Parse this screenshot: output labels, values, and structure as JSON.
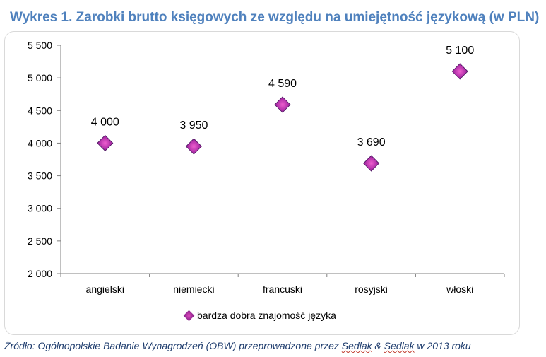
{
  "title": "Wykres 1. Zarobki brutto księgowych ze względu na umiejętność językową (w PLN)",
  "source": {
    "prefix": "Źródło: Ogólnopolskie Badanie Wynagrodzeń (OBW) przeprowadzone przez ",
    "name1": "Sedlak",
    "amp": " & ",
    "name2": "Sedlak",
    "suffix": " w 2013 roku"
  },
  "colors": {
    "marker": "#9b2fa8",
    "title": "#4f81bd",
    "axis": "#808080"
  },
  "chart_data": {
    "type": "scatter",
    "categories": [
      "angielski",
      "niemiecki",
      "francuski",
      "rosyjski",
      "włoski"
    ],
    "series": [
      {
        "name": "bardza dobra znajomość języka",
        "values": [
          4000,
          3950,
          4590,
          3690,
          5100
        ],
        "labels": [
          "4 000",
          "3 950",
          "4 590",
          "3 690",
          "5 100"
        ]
      }
    ],
    "ylim": [
      2000,
      5500
    ],
    "yticks": [
      2000,
      2500,
      3000,
      3500,
      4000,
      4500,
      5000,
      5500
    ],
    "ytick_labels": [
      "2 000",
      "2 500",
      "3 000",
      "3 500",
      "4 000",
      "4 500",
      "5 000",
      "5 500"
    ],
    "grid": false,
    "legend": "bottom"
  }
}
